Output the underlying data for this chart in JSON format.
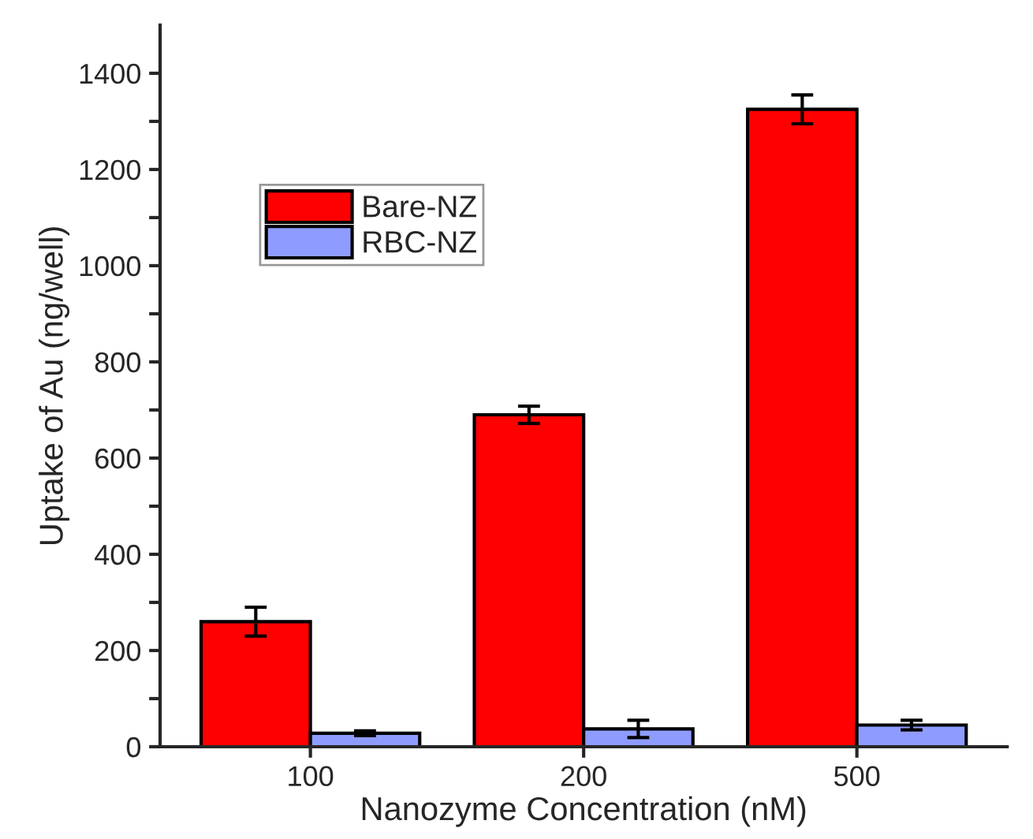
{
  "chart_data": {
    "type": "bar",
    "xlabel": "Nanozyme Concentration (nM)",
    "ylabel": "Uptake of Au (ng/well)",
    "categories": [
      "100",
      "200",
      "500"
    ],
    "series": [
      {
        "name": "Bare-NZ",
        "color": "#ff0000",
        "values": [
          260,
          690,
          1325
        ],
        "errors": [
          30,
          18,
          30
        ]
      },
      {
        "name": "RBC-NZ",
        "color": "#8f9cff",
        "values": [
          28,
          37,
          45
        ],
        "errors": [
          5,
          18,
          10
        ]
      }
    ],
    "ylim": [
      0,
      1500
    ],
    "yticks": [
      0,
      {
        "value": 100,
        "label": null
      },
      200,
      {
        "value": 300,
        "label": null
      },
      400,
      {
        "value": 500,
        "label": null
      },
      600,
      {
        "value": 700,
        "label": null
      },
      800,
      {
        "value": 900,
        "label": null
      },
      1000,
      {
        "value": 1100,
        "label": null
      },
      1200,
      {
        "value": 1300,
        "label": null
      },
      1400
    ],
    "legend": "top left",
    "grid": false
  }
}
